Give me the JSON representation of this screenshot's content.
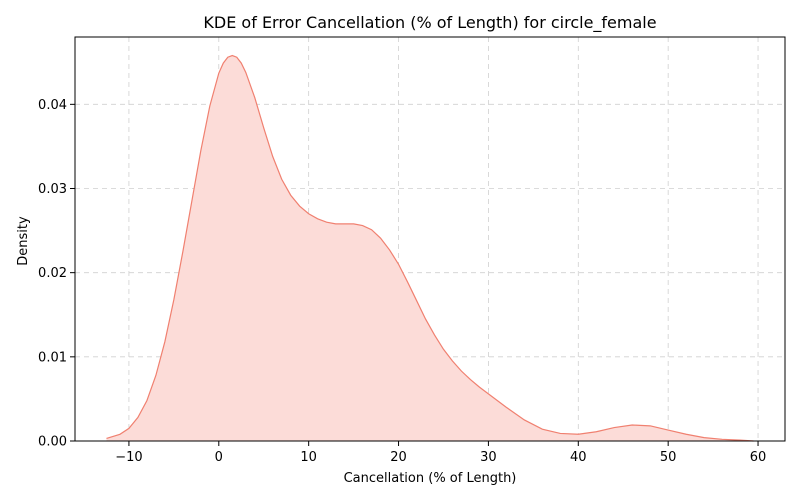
{
  "chart_data": {
    "type": "area",
    "title": "KDE of Error Cancellation (% of Length) for circle_female",
    "xlabel": "Cancellation (% of Length)",
    "ylabel": "Density",
    "xlim": [
      -16,
      63
    ],
    "ylim": [
      0,
      0.048
    ],
    "x_ticks": [
      -10,
      0,
      10,
      20,
      30,
      40,
      50,
      60
    ],
    "y_ticks": [
      0.0,
      0.01,
      0.02,
      0.03,
      0.04
    ],
    "x_tick_labels": [
      "−10",
      "0",
      "10",
      "20",
      "30",
      "40",
      "50",
      "60"
    ],
    "y_tick_labels": [
      "0.00",
      "0.01",
      "0.02",
      "0.03",
      "0.04"
    ],
    "grid": true,
    "colors": {
      "line": "#f08070",
      "fill": "#fcdcd8",
      "grid": "#d0d0d0"
    },
    "series": [
      {
        "x": [
          -12.5,
          -11,
          -10,
          -9,
          -8,
          -7,
          -6,
          -5,
          -4,
          -3,
          -2,
          -1,
          0,
          0.5,
          1,
          1.5,
          2,
          2.5,
          3,
          4,
          5,
          6,
          7,
          8,
          9,
          10,
          11,
          12,
          13,
          14,
          15,
          16,
          17,
          18,
          19,
          20,
          21,
          22,
          23,
          24,
          25,
          26,
          27,
          28,
          29,
          30,
          32,
          34,
          36,
          38,
          40,
          42,
          44,
          46,
          48,
          50,
          52,
          54,
          56,
          58,
          59.5
        ],
        "y": [
          0.0003,
          0.0008,
          0.0015,
          0.0028,
          0.0048,
          0.0078,
          0.0118,
          0.0168,
          0.0225,
          0.0285,
          0.0345,
          0.0398,
          0.0437,
          0.0449,
          0.0456,
          0.0458,
          0.0456,
          0.0449,
          0.0438,
          0.0408,
          0.0372,
          0.0338,
          0.0311,
          0.0292,
          0.0279,
          0.027,
          0.0264,
          0.026,
          0.0258,
          0.0258,
          0.0258,
          0.0256,
          0.0251,
          0.0241,
          0.0227,
          0.021,
          0.0189,
          0.0167,
          0.0145,
          0.0126,
          0.0109,
          0.0095,
          0.0083,
          0.0073,
          0.0064,
          0.0056,
          0.004,
          0.0025,
          0.0014,
          0.0009,
          0.0008,
          0.0011,
          0.0016,
          0.0019,
          0.0018,
          0.0013,
          0.0008,
          0.0004,
          0.0002,
          0.0001,
          0.0
        ]
      }
    ]
  }
}
